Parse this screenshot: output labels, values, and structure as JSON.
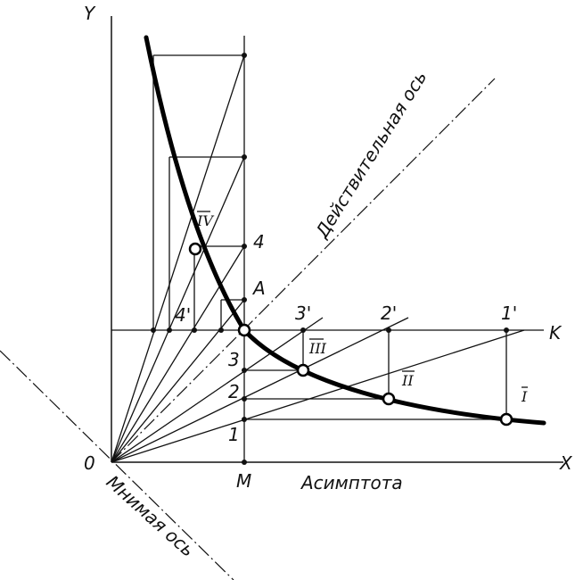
{
  "axis_labels": {
    "y": "Y",
    "x": "X",
    "origin": "0",
    "k": "K",
    "m": "M",
    "a": "A"
  },
  "axis_names": {
    "asymptote": "Асимптота",
    "real_axis": "Действительная ось",
    "imaginary_axis": "Мнимая ось"
  },
  "points_on_vertical": [
    "1",
    "2",
    "3",
    "4"
  ],
  "points_on_horizontal": [
    "1'",
    "2'",
    "3'",
    "4'"
  ],
  "curve_points": [
    "I",
    "II",
    "III",
    "IV"
  ]
}
